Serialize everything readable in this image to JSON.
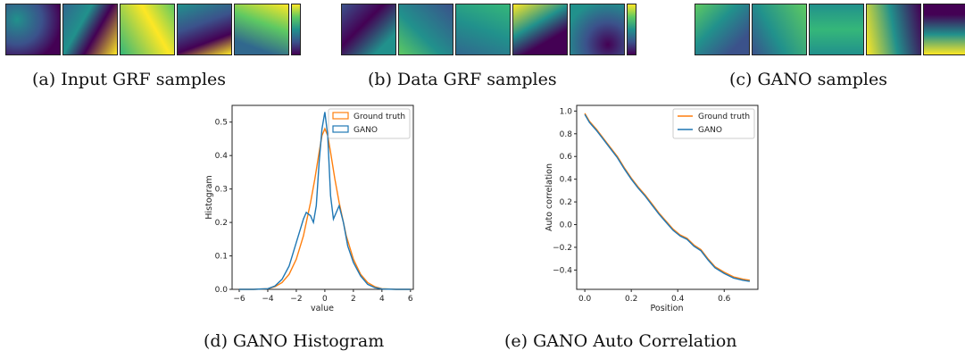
{
  "captions": {
    "a": "(a) Input GRF samples",
    "b": "(b) Data GRF samples",
    "c": "(c) GANO samples",
    "d": "(d) GANO Histogram",
    "e": "(e) GANO Auto Correlation"
  },
  "colors": {
    "ground_truth": "#ff7f0e",
    "gano": "#1f77b4",
    "viridis_low": "#440154",
    "viridis_high": "#fde725"
  },
  "chart_data": [
    {
      "type": "line",
      "title": "",
      "xlabel": "value",
      "ylabel": "Histogram",
      "xlim": [
        -6.5,
        6.2
      ],
      "ylim": [
        0,
        0.55
      ],
      "xticks": [
        "−6",
        "−4",
        "−2",
        "0",
        "2",
        "4",
        "6"
      ],
      "yticks": [
        "0.0",
        "0.1",
        "0.2",
        "0.3",
        "0.4",
        "0.5"
      ],
      "legend": "top-right",
      "series": [
        {
          "name": "Ground truth",
          "x": [
            -6,
            -5,
            -4,
            -3.5,
            -3,
            -2.5,
            -2,
            -1.5,
            -1,
            -0.7,
            -0.4,
            -0.2,
            0,
            0.2,
            0.4,
            0.7,
            1,
            1.5,
            2,
            2.5,
            3,
            3.5,
            4,
            5,
            6
          ],
          "y": [
            0,
            0,
            0.002,
            0.008,
            0.02,
            0.045,
            0.09,
            0.16,
            0.26,
            0.33,
            0.41,
            0.46,
            0.48,
            0.46,
            0.41,
            0.33,
            0.26,
            0.16,
            0.09,
            0.045,
            0.02,
            0.008,
            0.002,
            0,
            0
          ]
        },
        {
          "name": "GANO",
          "x": [
            -6,
            -5,
            -4,
            -3.5,
            -3,
            -2.5,
            -2,
            -1.5,
            -1.3,
            -1,
            -0.8,
            -0.6,
            -0.4,
            -0.2,
            0,
            0.2,
            0.4,
            0.6,
            0.8,
            1,
            1.3,
            1.6,
            2,
            2.5,
            3,
            3.5,
            4,
            5,
            6
          ],
          "y": [
            0,
            0,
            0.002,
            0.01,
            0.03,
            0.07,
            0.14,
            0.21,
            0.23,
            0.22,
            0.2,
            0.25,
            0.38,
            0.48,
            0.53,
            0.46,
            0.28,
            0.21,
            0.23,
            0.25,
            0.2,
            0.13,
            0.08,
            0.04,
            0.015,
            0.005,
            0.001,
            0,
            0
          ]
        }
      ]
    },
    {
      "type": "line",
      "title": "",
      "xlabel": "Position",
      "ylabel": "Auto correlation",
      "xlim": [
        -0.035,
        0.745
      ],
      "ylim": [
        -0.57,
        1.05
      ],
      "xticks": [
        "0.0",
        "0.2",
        "0.4",
        "0.6"
      ],
      "yticks": [
        "−0.4",
        "−0.2",
        "0.0",
        "0.2",
        "0.4",
        "0.6",
        "0.8",
        "1.0"
      ],
      "legend": "top-right",
      "series": [
        {
          "name": "Ground truth",
          "x": [
            0,
            0.02,
            0.05,
            0.08,
            0.11,
            0.14,
            0.17,
            0.2,
            0.23,
            0.26,
            0.29,
            0.32,
            0.35,
            0.38,
            0.41,
            0.44,
            0.47,
            0.5,
            0.53,
            0.56,
            0.6,
            0.64,
            0.68,
            0.71
          ],
          "y": [
            0.98,
            0.91,
            0.84,
            0.76,
            0.68,
            0.6,
            0.5,
            0.41,
            0.33,
            0.26,
            0.18,
            0.1,
            0.03,
            -0.04,
            -0.09,
            -0.12,
            -0.18,
            -0.22,
            -0.3,
            -0.37,
            -0.42,
            -0.46,
            -0.48,
            -0.49
          ]
        },
        {
          "name": "GANO",
          "x": [
            0,
            0.02,
            0.05,
            0.08,
            0.11,
            0.14,
            0.17,
            0.2,
            0.23,
            0.26,
            0.29,
            0.32,
            0.35,
            0.38,
            0.41,
            0.44,
            0.47,
            0.5,
            0.53,
            0.56,
            0.6,
            0.64,
            0.68,
            0.71
          ],
          "y": [
            0.97,
            0.9,
            0.83,
            0.75,
            0.67,
            0.59,
            0.49,
            0.4,
            0.32,
            0.25,
            0.17,
            0.09,
            0.02,
            -0.05,
            -0.1,
            -0.13,
            -0.19,
            -0.23,
            -0.31,
            -0.38,
            -0.43,
            -0.47,
            -0.49,
            -0.5
          ]
        }
      ]
    }
  ]
}
